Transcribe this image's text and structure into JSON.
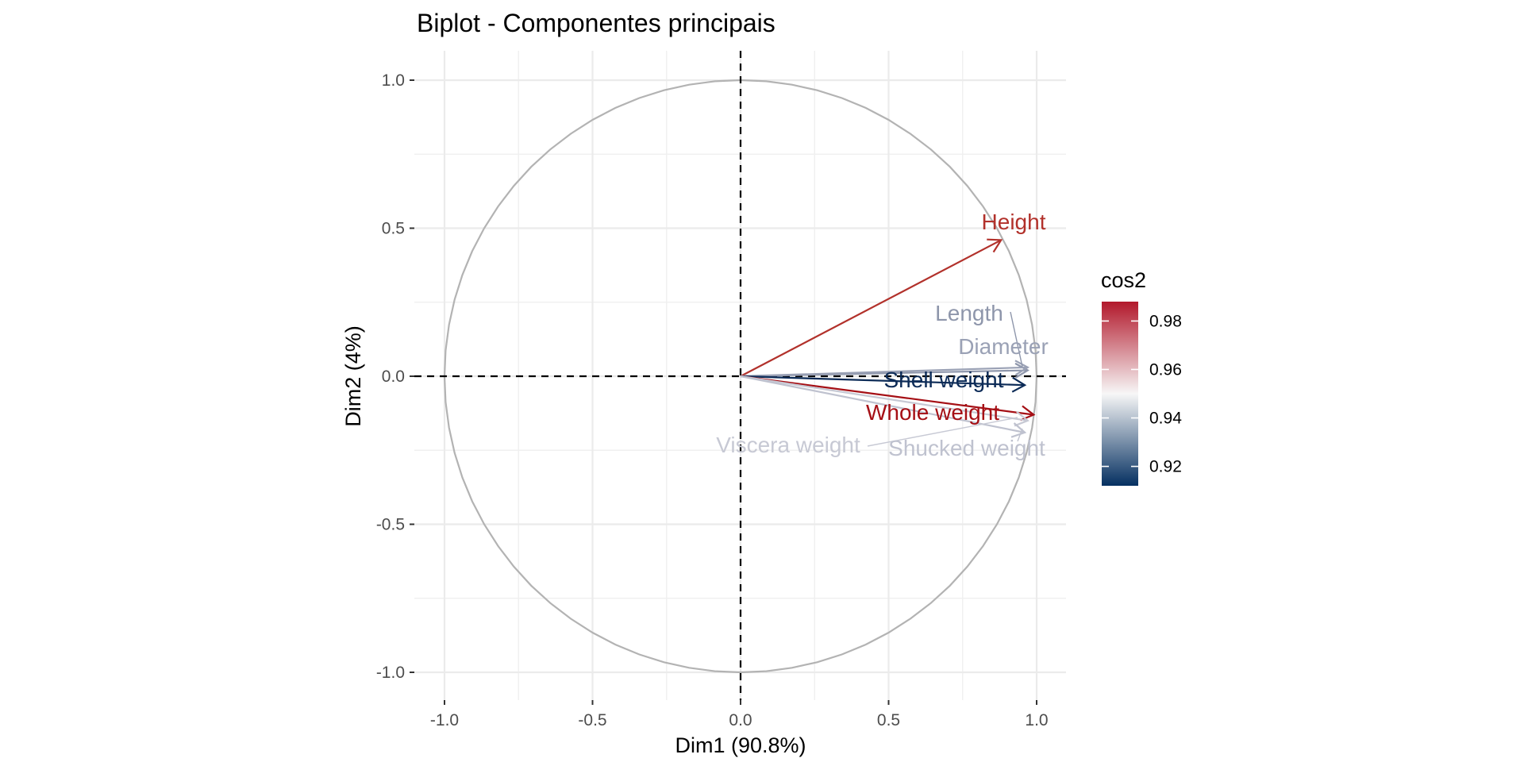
{
  "chart_data": {
    "type": "biplot",
    "title": "Biplot - Componentes principais",
    "xlabel": "Dim1 (90.8%)",
    "ylabel": "Dim2 (4%)",
    "xlim": [
      -1.0,
      1.0
    ],
    "ylim": [
      -1.0,
      1.0
    ],
    "x_ticks": [
      "-1.0",
      "-0.5",
      "0.0",
      "0.5",
      "1.0"
    ],
    "y_ticks": [
      "-1.0",
      "-0.5",
      "0.0",
      "0.5",
      "1.0"
    ],
    "grid": true,
    "correlation_circle": true,
    "variables": [
      {
        "name": "Height",
        "x": 0.88,
        "y": 0.46,
        "cos2": 0.986,
        "color": "#B2312B"
      },
      {
        "name": "Length",
        "x": 0.97,
        "y": 0.02,
        "cos2": 0.944,
        "color": "#8E96AB"
      },
      {
        "name": "Diameter",
        "x": 0.97,
        "y": 0.03,
        "cos2": 0.94,
        "color": "#9AA1B5"
      },
      {
        "name": "Shell weight",
        "x": 0.96,
        "y": -0.03,
        "cos2": 0.912,
        "color": "#0C2B57"
      },
      {
        "name": "Whole weight",
        "x": 0.99,
        "y": -0.13,
        "cos2": 0.988,
        "color": "#A50F15"
      },
      {
        "name": "Viscera weight",
        "x": 0.97,
        "y": -0.15,
        "cos2": 0.948,
        "color": "#C7C9D4"
      },
      {
        "name": "Shucked weight",
        "x": 0.96,
        "y": -0.19,
        "cos2": 0.951,
        "color": "#BFC2CF"
      }
    ],
    "legend": {
      "title": "cos2",
      "position": "right",
      "labels": [
        "0.98",
        "0.96",
        "0.94",
        "0.92"
      ],
      "values": [
        0.98,
        0.96,
        0.94,
        0.92
      ],
      "range": [
        0.912,
        0.988
      ],
      "low_color": "#053061",
      "mid_color": "#F7F7F7",
      "high_color": "#B2182B"
    }
  }
}
